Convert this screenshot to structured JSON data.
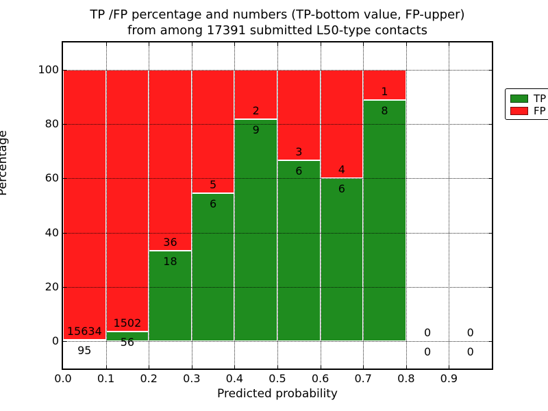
{
  "title": {
    "line1": "TP /FP percentage and numbers (TP-bottom value, FP-upper)",
    "line2": "from among 17391 submitted L50-type contacts"
  },
  "legend": {
    "position": "upper right",
    "items": [
      {
        "label": "TP",
        "color": "#1f8c1f"
      },
      {
        "label": "FP",
        "color": "#ff1c1c"
      }
    ]
  },
  "chart_data": {
    "type": "bar",
    "stacked": true,
    "title": "TP /FP percentage and numbers (TP-bottom value, FP-upper) from among 17391 submitted L50-type contacts",
    "xlabel": "Predicted probability",
    "ylabel": "Percentage",
    "xlim": [
      0.0,
      1.0
    ],
    "ylim": [
      -10,
      110
    ],
    "xticks": [
      "0.0",
      "0.1",
      "0.2",
      "0.3",
      "0.4",
      "0.5",
      "0.6",
      "0.7",
      "0.8",
      "0.9"
    ],
    "yticks": [
      0,
      20,
      40,
      60,
      80,
      100
    ],
    "grid": true,
    "colors": {
      "tp": "#1f8c1f",
      "fp": "#ff1c1c"
    },
    "series": [
      {
        "name": "TP",
        "color": "#1f8c1f",
        "counts": [
          95,
          56,
          18,
          6,
          9,
          6,
          6,
          8,
          0,
          0
        ]
      },
      {
        "name": "FP",
        "color": "#ff1c1c",
        "counts": [
          15634,
          1502,
          36,
          5,
          2,
          3,
          4,
          1,
          0,
          0
        ]
      }
    ],
    "bars": [
      {
        "bin": "0.0-0.1",
        "tp": 95,
        "fp": 15634,
        "tp_pct": 0.6
      },
      {
        "bin": "0.1-0.2",
        "tp": 56,
        "fp": 1502,
        "tp_pct": 3.59
      },
      {
        "bin": "0.2-0.3",
        "tp": 18,
        "fp": 36,
        "tp_pct": 33.33
      },
      {
        "bin": "0.3-0.4",
        "tp": 6,
        "fp": 5,
        "tp_pct": 54.55
      },
      {
        "bin": "0.4-0.5",
        "tp": 9,
        "fp": 2,
        "tp_pct": 81.82
      },
      {
        "bin": "0.5-0.6",
        "tp": 6,
        "fp": 3,
        "tp_pct": 66.67
      },
      {
        "bin": "0.6-0.7",
        "tp": 6,
        "fp": 4,
        "tp_pct": 60.0
      },
      {
        "bin": "0.7-0.8",
        "tp": 8,
        "fp": 1,
        "tp_pct": 88.89
      },
      {
        "bin": "0.8-0.9",
        "tp": 0,
        "fp": 0,
        "tp_pct": null
      },
      {
        "bin": "0.9-1.0",
        "tp": 0,
        "fp": 0,
        "tp_pct": null
      }
    ]
  }
}
